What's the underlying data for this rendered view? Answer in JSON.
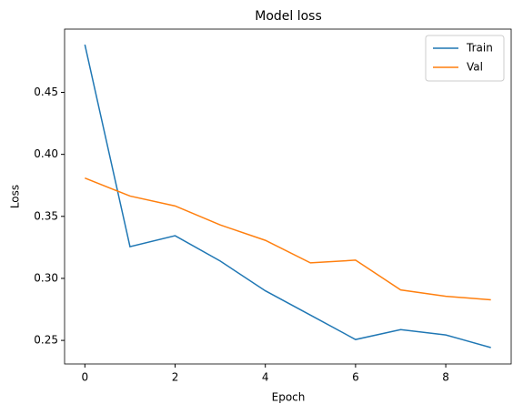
{
  "chart_data": {
    "type": "line",
    "title": "Model loss",
    "x_label": "Epoch",
    "y_label": "Loss",
    "x": [
      0,
      1,
      2,
      3,
      4,
      5,
      6,
      7,
      8,
      9
    ],
    "series": [
      {
        "name": "Train",
        "color": "#1f77b4",
        "values": [
          0.4885,
          0.3256,
          0.3344,
          0.314,
          0.29,
          0.2704,
          0.2507,
          0.2587,
          0.2544,
          0.2442
        ]
      },
      {
        "name": "Val",
        "color": "#ff7f0e",
        "values": [
          0.3809,
          0.3664,
          0.3584,
          0.3431,
          0.3307,
          0.3125,
          0.3147,
          0.2907,
          0.2856,
          0.2827
        ]
      }
    ],
    "xlim": [
      -0.45,
      9.45
    ],
    "xticks": [
      0,
      2,
      4,
      6,
      8
    ],
    "ylim": [
      0.231,
      0.501
    ],
    "yticks": [
      0.25,
      {
        "value": 0.3,
        "label": "0.30"
      },
      0.35,
      {
        "value": 0.4,
        "label": "0.40"
      },
      0.45
    ],
    "legend": "upper right",
    "grid": false
  }
}
